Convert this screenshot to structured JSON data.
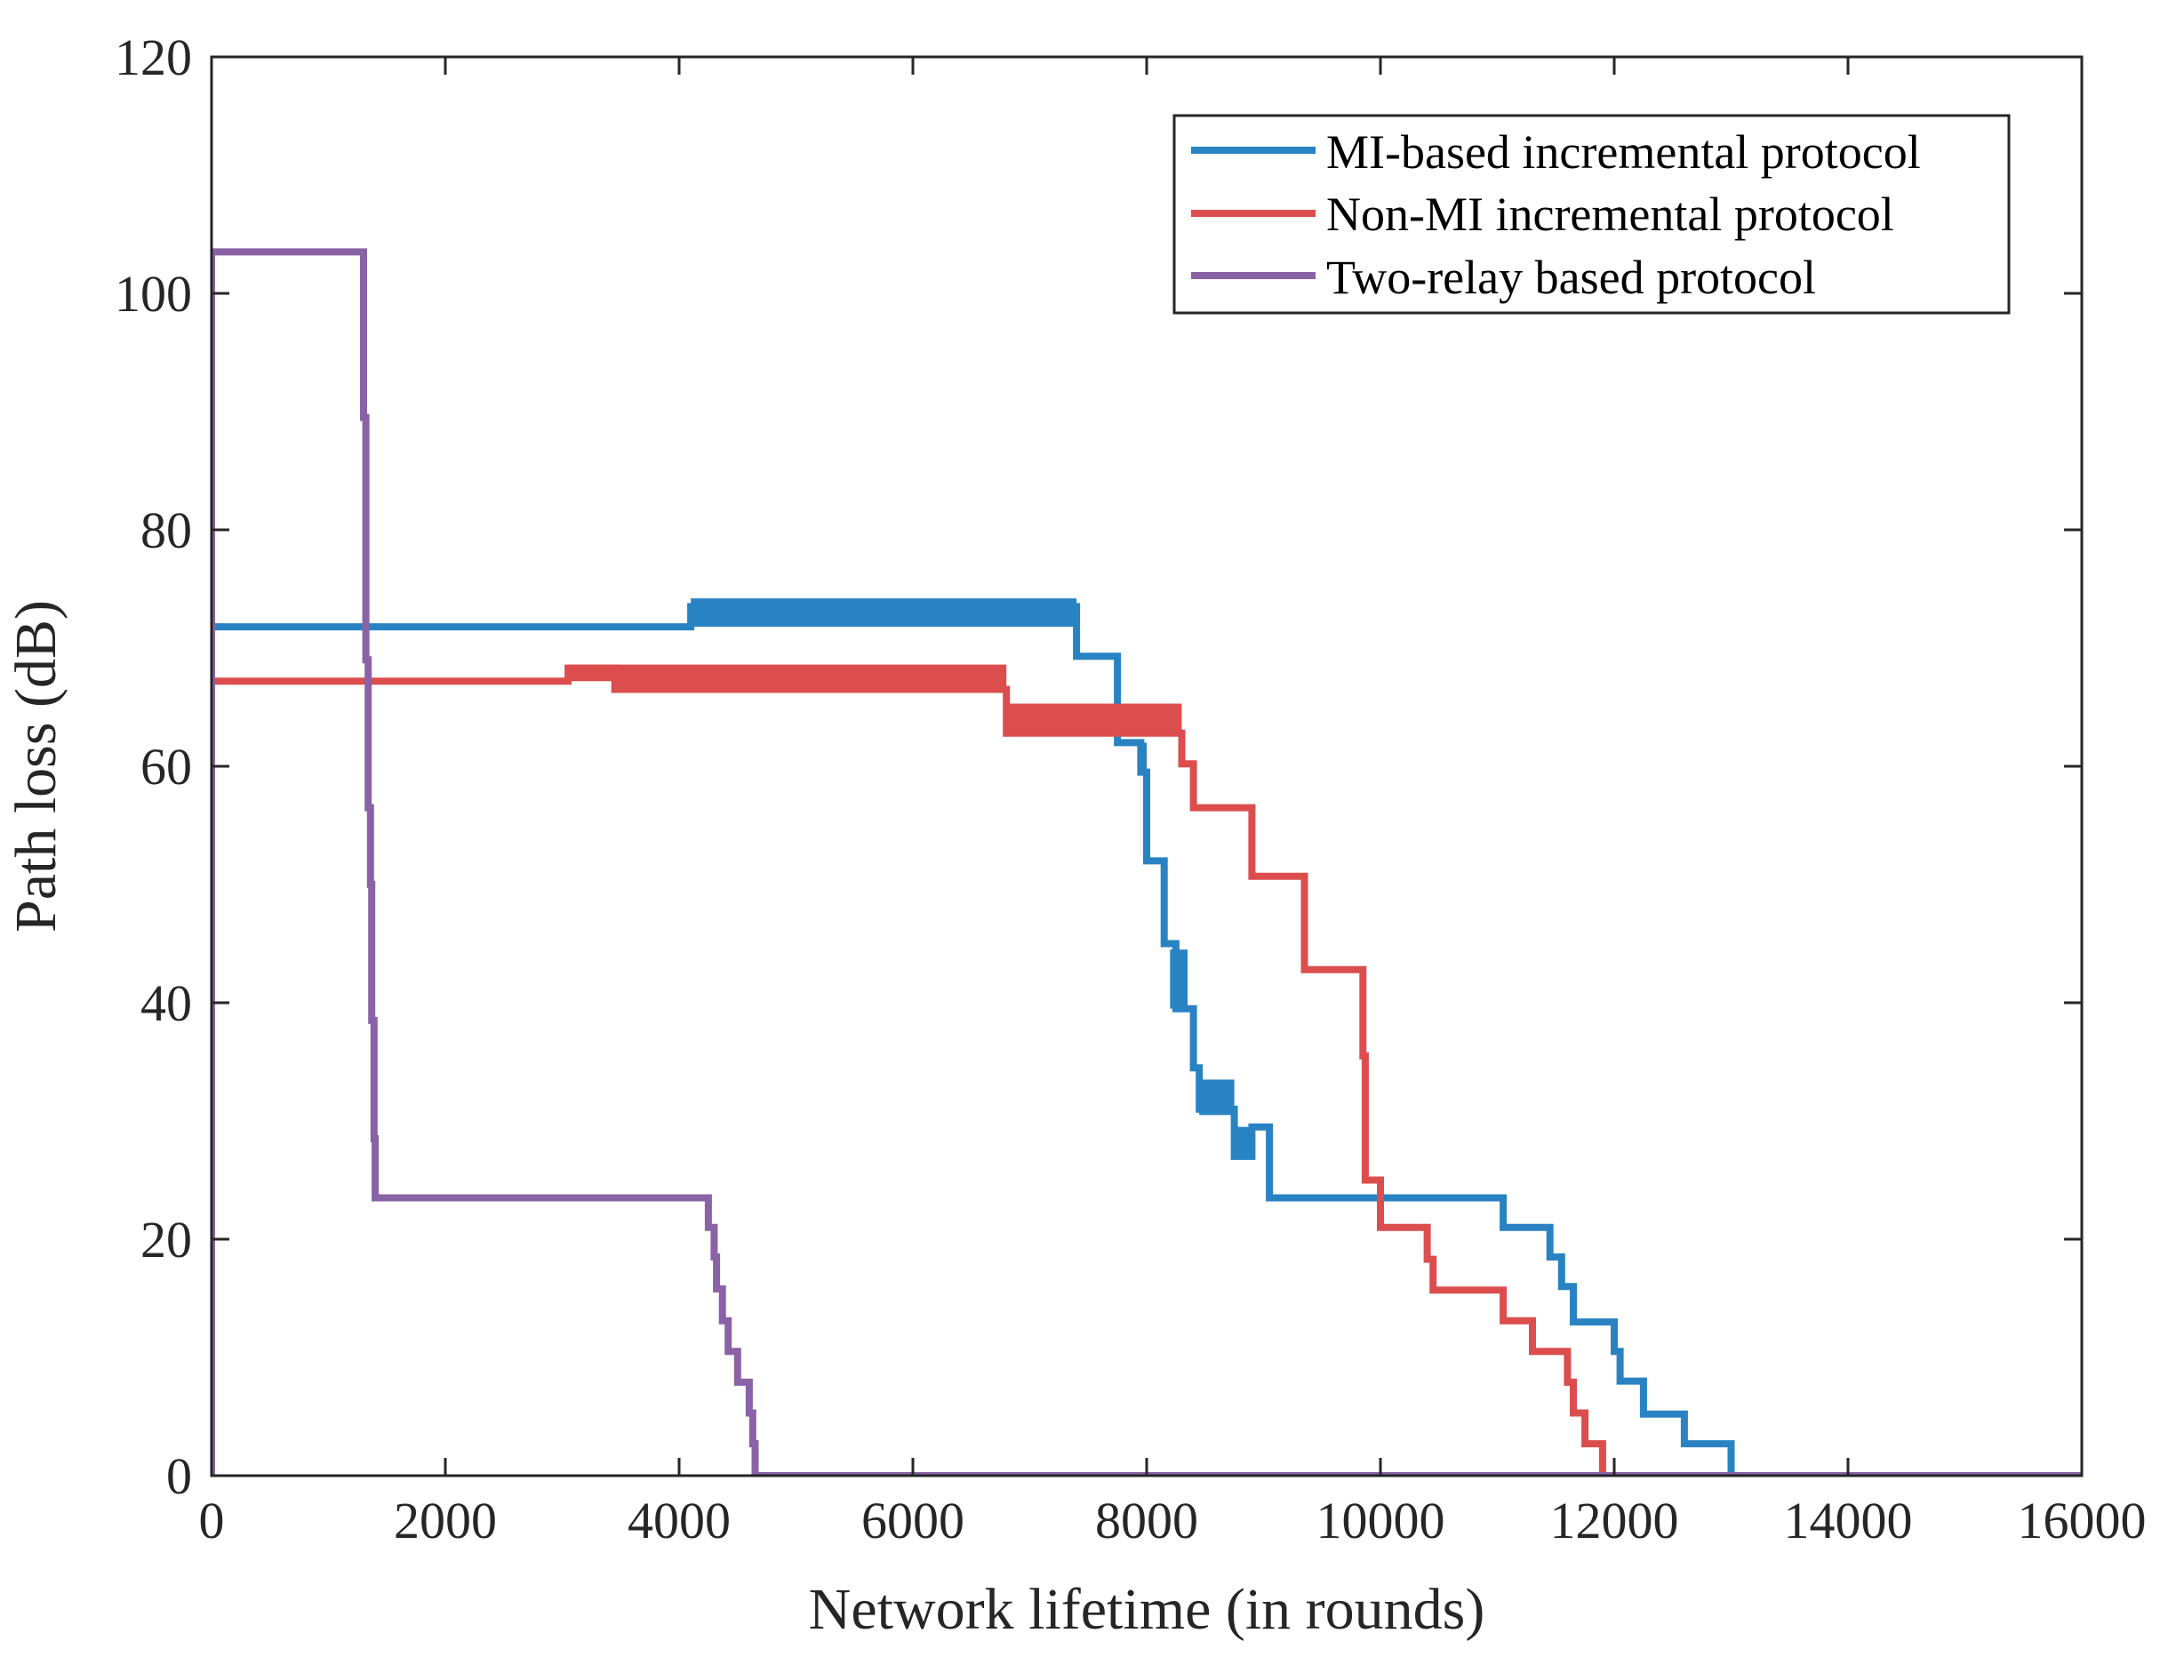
{
  "chart_data": {
    "type": "line",
    "title": "",
    "xlabel": "Network lifetime (in rounds)",
    "ylabel": "Path loss (dB)",
    "xlim": [
      0,
      16000
    ],
    "ylim": [
      0,
      120
    ],
    "xticks": [
      0,
      2000,
      4000,
      6000,
      8000,
      10000,
      12000,
      14000,
      16000
    ],
    "yticks": [
      0,
      20,
      40,
      60,
      80,
      100,
      120
    ],
    "grid": false,
    "legend": {
      "position": "top-right"
    },
    "series": [
      {
        "name": "MI-based incremental protocol",
        "color": "#2983C3",
        "step": true,
        "points": [
          [
            0,
            71.8
          ],
          [
            4100,
            71.8
          ],
          [
            4100,
            73.5
          ],
          [
            7400,
            73.5
          ],
          [
            7400,
            69.3
          ],
          [
            7750,
            69.3
          ],
          [
            7750,
            62
          ],
          [
            7950,
            62
          ],
          [
            7950,
            59.5
          ],
          [
            8000,
            59.5
          ],
          [
            8000,
            52
          ],
          [
            8150,
            52
          ],
          [
            8150,
            45
          ],
          [
            8250,
            45
          ],
          [
            8250,
            39.5
          ],
          [
            8400,
            39.5
          ],
          [
            8400,
            34.5
          ],
          [
            8450,
            34.5
          ],
          [
            8450,
            31
          ],
          [
            8750,
            31
          ],
          [
            8750,
            27
          ],
          [
            8900,
            27
          ],
          [
            8900,
            29.5
          ],
          [
            9050,
            29.5
          ],
          [
            9050,
            23.5
          ],
          [
            11050,
            23.5
          ],
          [
            11050,
            21
          ],
          [
            11450,
            21
          ],
          [
            11450,
            18.5
          ],
          [
            11550,
            18.5
          ],
          [
            11550,
            16
          ],
          [
            11650,
            16
          ],
          [
            11650,
            13
          ],
          [
            12000,
            13
          ],
          [
            12000,
            10.5
          ],
          [
            12050,
            10.5
          ],
          [
            12050,
            8
          ],
          [
            12250,
            8
          ],
          [
            12250,
            5.2
          ],
          [
            12600,
            5.2
          ],
          [
            12600,
            2.7
          ],
          [
            13000,
            2.7
          ],
          [
            13000,
            0
          ],
          [
            16000,
            0
          ]
        ],
        "bands": [
          [
            4100,
            7400,
            71.8,
            74.2
          ],
          [
            7950,
            8000,
            59.5,
            62
          ],
          [
            8200,
            8350,
            39.5,
            44.5
          ],
          [
            8450,
            8750,
            30.5,
            33.5
          ],
          [
            8750,
            8900,
            27,
            29.5
          ]
        ]
      },
      {
        "name": "Non-MI incremental protocol",
        "color": "#DC4D4D",
        "step": true,
        "points": [
          [
            0,
            67.2
          ],
          [
            3050,
            67.2
          ],
          [
            3050,
            68.3
          ],
          [
            3450,
            68.3
          ],
          [
            3450,
            66.5
          ],
          [
            6800,
            66.5
          ],
          [
            6800,
            62.8
          ],
          [
            8300,
            62.8
          ],
          [
            8300,
            60.2
          ],
          [
            8400,
            60.2
          ],
          [
            8400,
            56.5
          ],
          [
            8900,
            56.5
          ],
          [
            8900,
            50.7
          ],
          [
            9350,
            50.7
          ],
          [
            9350,
            42.8
          ],
          [
            9850,
            42.8
          ],
          [
            9850,
            35.5
          ],
          [
            9870,
            35.5
          ],
          [
            9870,
            25
          ],
          [
            10000,
            25
          ],
          [
            10000,
            21
          ],
          [
            10400,
            21
          ],
          [
            10400,
            18.3
          ],
          [
            10450,
            18.3
          ],
          [
            10450,
            15.7
          ],
          [
            11050,
            15.7
          ],
          [
            11050,
            13.1
          ],
          [
            11300,
            13.1
          ],
          [
            11300,
            10.5
          ],
          [
            11600,
            10.5
          ],
          [
            11600,
            7.9
          ],
          [
            11650,
            7.9
          ],
          [
            11650,
            5.3
          ],
          [
            11750,
            5.3
          ],
          [
            11750,
            2.7
          ],
          [
            11900,
            2.7
          ],
          [
            11900,
            0
          ]
        ],
        "bands": [
          [
            3050,
            3450,
            67.2,
            68.6
          ],
          [
            3450,
            6800,
            66.3,
            68.6
          ],
          [
            6800,
            8300,
            62.6,
            65.3
          ]
        ]
      },
      {
        "name": "Two-relay based protocol",
        "color": "#8A62A6",
        "step": true,
        "points": [
          [
            0,
            0
          ],
          [
            0,
            103.5
          ],
          [
            1300,
            103.5
          ],
          [
            1300,
            89.5
          ],
          [
            1320,
            89.5
          ],
          [
            1320,
            69
          ],
          [
            1340,
            69
          ],
          [
            1340,
            56.5
          ],
          [
            1360,
            56.5
          ],
          [
            1360,
            50
          ],
          [
            1370,
            50
          ],
          [
            1370,
            38.5
          ],
          [
            1390,
            38.5
          ],
          [
            1390,
            28.5
          ],
          [
            1400,
            28.5
          ],
          [
            1400,
            23.5
          ],
          [
            4250,
            23.5
          ],
          [
            4250,
            21
          ],
          [
            4300,
            21
          ],
          [
            4300,
            18.5
          ],
          [
            4320,
            18.5
          ],
          [
            4320,
            15.8
          ],
          [
            4370,
            15.8
          ],
          [
            4370,
            13.1
          ],
          [
            4420,
            13.1
          ],
          [
            4420,
            10.5
          ],
          [
            4500,
            10.5
          ],
          [
            4500,
            7.9
          ],
          [
            4600,
            7.9
          ],
          [
            4600,
            5.3
          ],
          [
            4630,
            5.3
          ],
          [
            4630,
            2.7
          ],
          [
            4650,
            2.7
          ],
          [
            4650,
            0
          ],
          [
            16000,
            0
          ]
        ],
        "bands": []
      }
    ]
  }
}
